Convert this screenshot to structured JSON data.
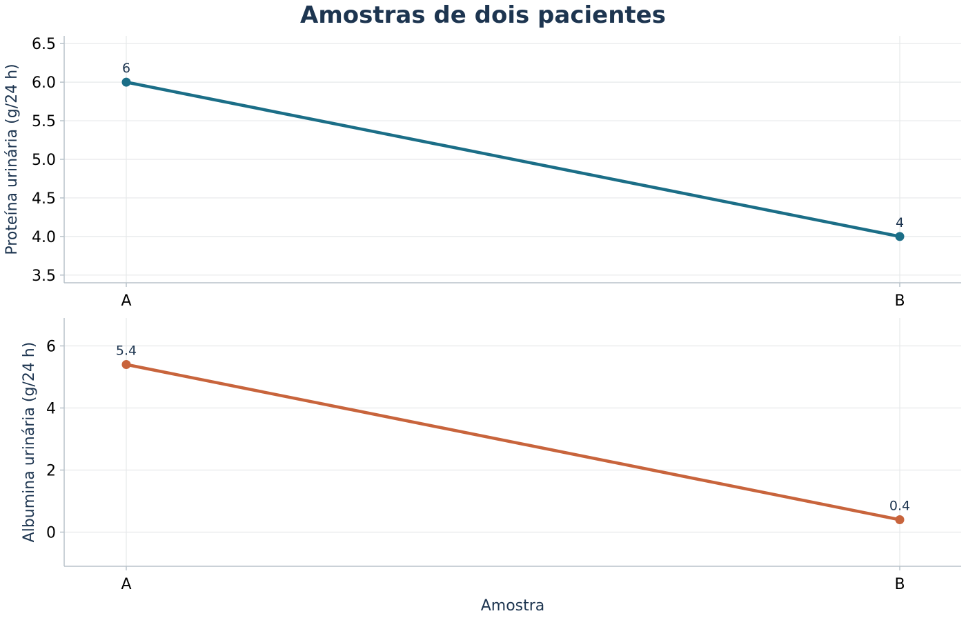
{
  "title": "Amostras de dois pacientes",
  "chart_data": [
    {
      "type": "line",
      "categories": [
        "A",
        "B"
      ],
      "series": [
        {
          "values": [
            6,
            4
          ],
          "color": "#1b6e87"
        }
      ],
      "data_labels": [
        "6",
        "4"
      ],
      "xlabel": "",
      "ylabel": "Proteína urinária (g/24 h)",
      "ylim": [
        3.4,
        6.6
      ],
      "yticks": [
        3.5,
        4.0,
        4.5,
        5.0,
        5.5,
        6.0,
        6.5
      ],
      "ytick_labels": [
        "3.5",
        "4.0",
        "4.5",
        "5.0",
        "5.5",
        "6.0",
        "6.5"
      ],
      "grid": true
    },
    {
      "type": "line",
      "categories": [
        "A",
        "B"
      ],
      "series": [
        {
          "values": [
            5.4,
            0.4
          ],
          "color": "#c8643c"
        }
      ],
      "data_labels": [
        "5.4",
        "0.4"
      ],
      "xlabel": "Amostra",
      "ylabel": "Albumina urinária (g/24 h)",
      "ylim": [
        -1.1,
        6.9
      ],
      "yticks": [
        0,
        2,
        4,
        6
      ],
      "ytick_labels": [
        "0",
        "2",
        "4",
        "6"
      ],
      "grid": true
    }
  ]
}
